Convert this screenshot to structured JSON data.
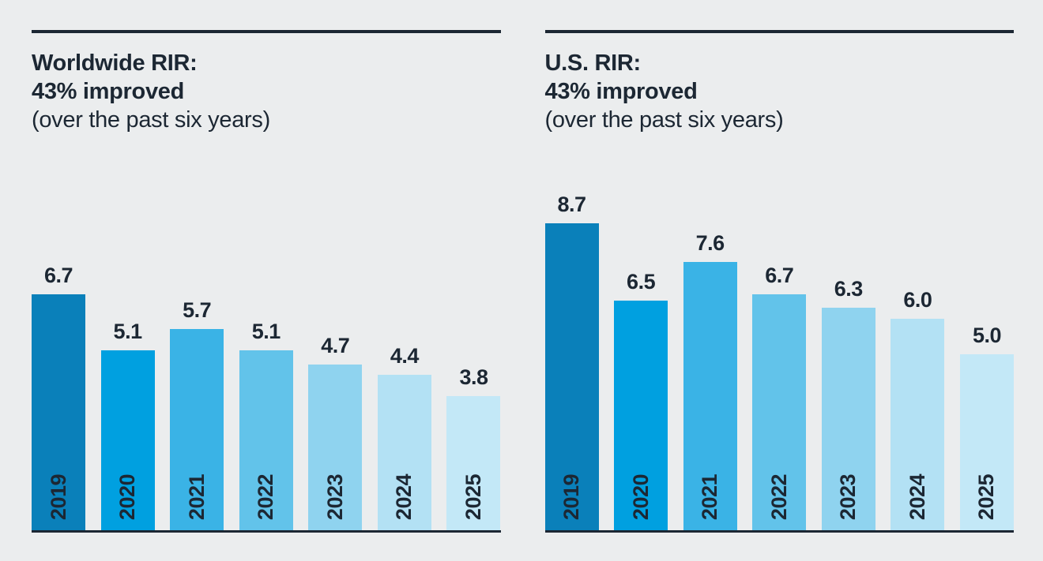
{
  "page": {
    "background_color": "#ebedee",
    "ink_color": "#1c2733"
  },
  "bar_colors": [
    "#0a80ba",
    "#00a0e0",
    "#3ab3e6",
    "#62c3ea",
    "#8fd3ef",
    "#b3e1f4",
    "#c3e8f7"
  ],
  "chart_data": [
    {
      "type": "bar",
      "title_line1": "Worldwide RIR:",
      "title_line2": "43% improved",
      "title_line3": "(over the past six years)",
      "categories": [
        "2019",
        "2020",
        "2021",
        "2022",
        "2023",
        "2024",
        "2025"
      ],
      "values": [
        6.7,
        5.1,
        5.7,
        5.1,
        4.7,
        4.4,
        3.8
      ],
      "ylim": [
        0,
        9
      ],
      "grid": false,
      "legend": "none",
      "value_labels": [
        "6.7",
        "5.1",
        "5.7",
        "5.1",
        "4.7",
        "4.4",
        "3.8"
      ]
    },
    {
      "type": "bar",
      "title_line1": "U.S. RIR:",
      "title_line2": "43% improved",
      "title_line3": "(over the past six years)",
      "categories": [
        "2019",
        "2020",
        "2021",
        "2022",
        "2023",
        "2024",
        "2025"
      ],
      "values": [
        8.7,
        6.5,
        7.6,
        6.7,
        6.3,
        6.0,
        5.0
      ],
      "ylim": [
        0,
        9
      ],
      "grid": false,
      "legend": "none",
      "value_labels": [
        "8.7",
        "6.5",
        "7.6",
        "6.7",
        "6.3",
        "6.0",
        "5.0"
      ]
    }
  ]
}
